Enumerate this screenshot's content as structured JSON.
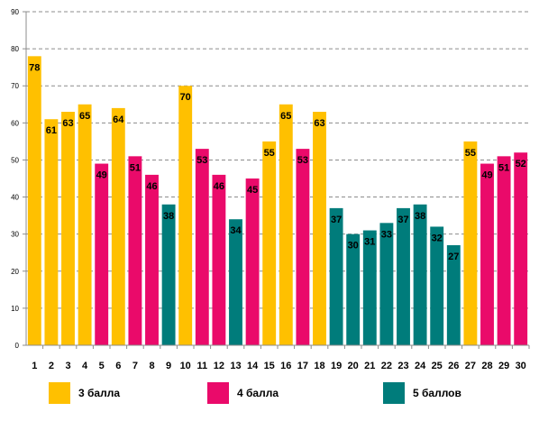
{
  "chart_data": {
    "type": "bar",
    "categories": [
      "1",
      "2",
      "3",
      "4",
      "5",
      "6",
      "7",
      "8",
      "9",
      "10",
      "11",
      "12",
      "13",
      "14",
      "15",
      "16",
      "17",
      "18",
      "19",
      "20",
      "21",
      "22",
      "23",
      "24",
      "25",
      "26",
      "27",
      "28",
      "29",
      "30"
    ],
    "values": [
      78,
      61,
      63,
      65,
      49,
      64,
      51,
      46,
      38,
      70,
      53,
      46,
      34,
      45,
      55,
      65,
      53,
      63,
      37,
      30,
      31,
      33,
      37,
      38,
      32,
      27,
      55,
      49,
      51,
      52
    ],
    "groups": [
      "3 балла",
      "3 балла",
      "3 балла",
      "3 балла",
      "4 балла",
      "3 балла",
      "4 балла",
      "4 балла",
      "5 баллов",
      "3 балла",
      "4 балла",
      "4 балла",
      "5 баллов",
      "4 балла",
      "3 балла",
      "3 балла",
      "4 балла",
      "3 балла",
      "5 баллов",
      "5 баллов",
      "5 баллов",
      "5 баллов",
      "5 баллов",
      "5 баллов",
      "5 баллов",
      "5 баллов",
      "3 балла",
      "4 балла",
      "4 балла",
      "4 балла"
    ],
    "legend": [
      {
        "name": "3 балла",
        "color": "#ffc000"
      },
      {
        "name": "4 балла",
        "color": "#ea0a6a"
      },
      {
        "name": "5 баллов",
        "color": "#007c7b"
      }
    ],
    "legend_position": "bottom",
    "ylim": [
      0,
      90
    ],
    "yticks": [
      "0",
      "10",
      "20",
      "30",
      "40",
      "50",
      "60",
      "70",
      "80",
      "90"
    ],
    "grid": true,
    "xlabel": "",
    "ylabel": "",
    "title": ""
  }
}
